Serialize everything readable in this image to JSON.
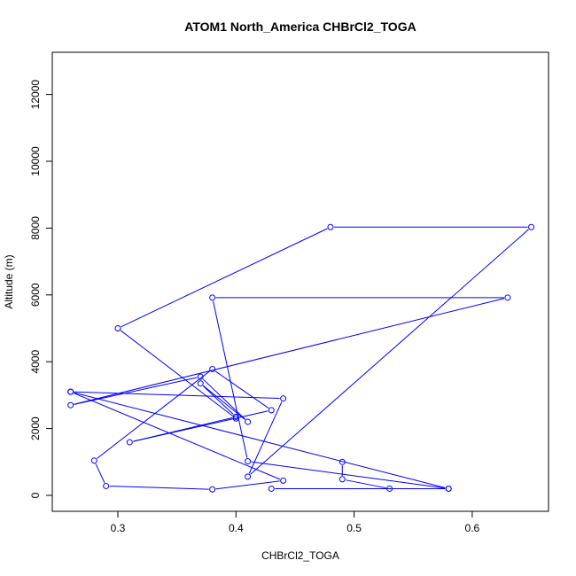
{
  "chart_data": {
    "type": "line",
    "title": "ATOM1 North_America CHBrCl2_TOGA",
    "xlabel": "CHBrCl2_TOGA",
    "ylabel": "Altitude (m)",
    "xlim": [
      0.26,
      0.65
    ],
    "ylim": [
      0,
      12000
    ],
    "x_ticks": [
      0.3,
      0.4,
      0.5,
      0.6
    ],
    "x_tick_labels": [
      "0.3",
      "0.4",
      "0.5",
      "0.6"
    ],
    "y_ticks": [
      0,
      2000,
      4000,
      6000,
      8000,
      10000,
      12000
    ],
    "y_tick_labels": [
      "0",
      "2000",
      "4000",
      "6000",
      "8000",
      "10000",
      "12000"
    ],
    "grid": false,
    "legend": "none",
    "series_color": "#0000ff",
    "marker": "open-circle",
    "series": [
      {
        "points": [
          {
            "x": 0.49,
            "y": 1000
          },
          {
            "x": 0.49,
            "y": 480
          },
          {
            "x": 0.53,
            "y": 200
          },
          {
            "x": 0.43,
            "y": 200
          },
          {
            "x": 0.58,
            "y": 200
          },
          {
            "x": 0.26,
            "y": 3100
          },
          {
            "x": 0.44,
            "y": 440
          },
          {
            "x": 0.38,
            "y": 180
          },
          {
            "x": 0.29,
            "y": 280
          },
          {
            "x": 0.28,
            "y": 1040
          },
          {
            "x": 0.38,
            "y": 3780
          },
          {
            "x": 0.43,
            "y": 2550
          },
          {
            "x": 0.31,
            "y": 1590
          },
          {
            "x": 0.4,
            "y": 2350
          },
          {
            "x": 0.37,
            "y": 3350
          },
          {
            "x": 0.41,
            "y": 2200
          },
          {
            "x": 0.37,
            "y": 3550
          },
          {
            "x": 0.26,
            "y": 2700
          },
          {
            "x": 0.63,
            "y": 5920
          },
          {
            "x": 0.38,
            "y": 5920
          },
          {
            "x": 0.41,
            "y": 1020
          },
          {
            "x": 0.58,
            "y": 200
          }
        ]
      },
      {
        "points": [
          {
            "x": 0.26,
            "y": 3100
          },
          {
            "x": 0.44,
            "y": 2900
          },
          {
            "x": 0.41,
            "y": 560
          },
          {
            "x": 0.65,
            "y": 8030
          },
          {
            "x": 0.48,
            "y": 8030
          },
          {
            "x": 0.3,
            "y": 5000
          },
          {
            "x": 0.4,
            "y": 2300
          }
        ]
      }
    ]
  }
}
